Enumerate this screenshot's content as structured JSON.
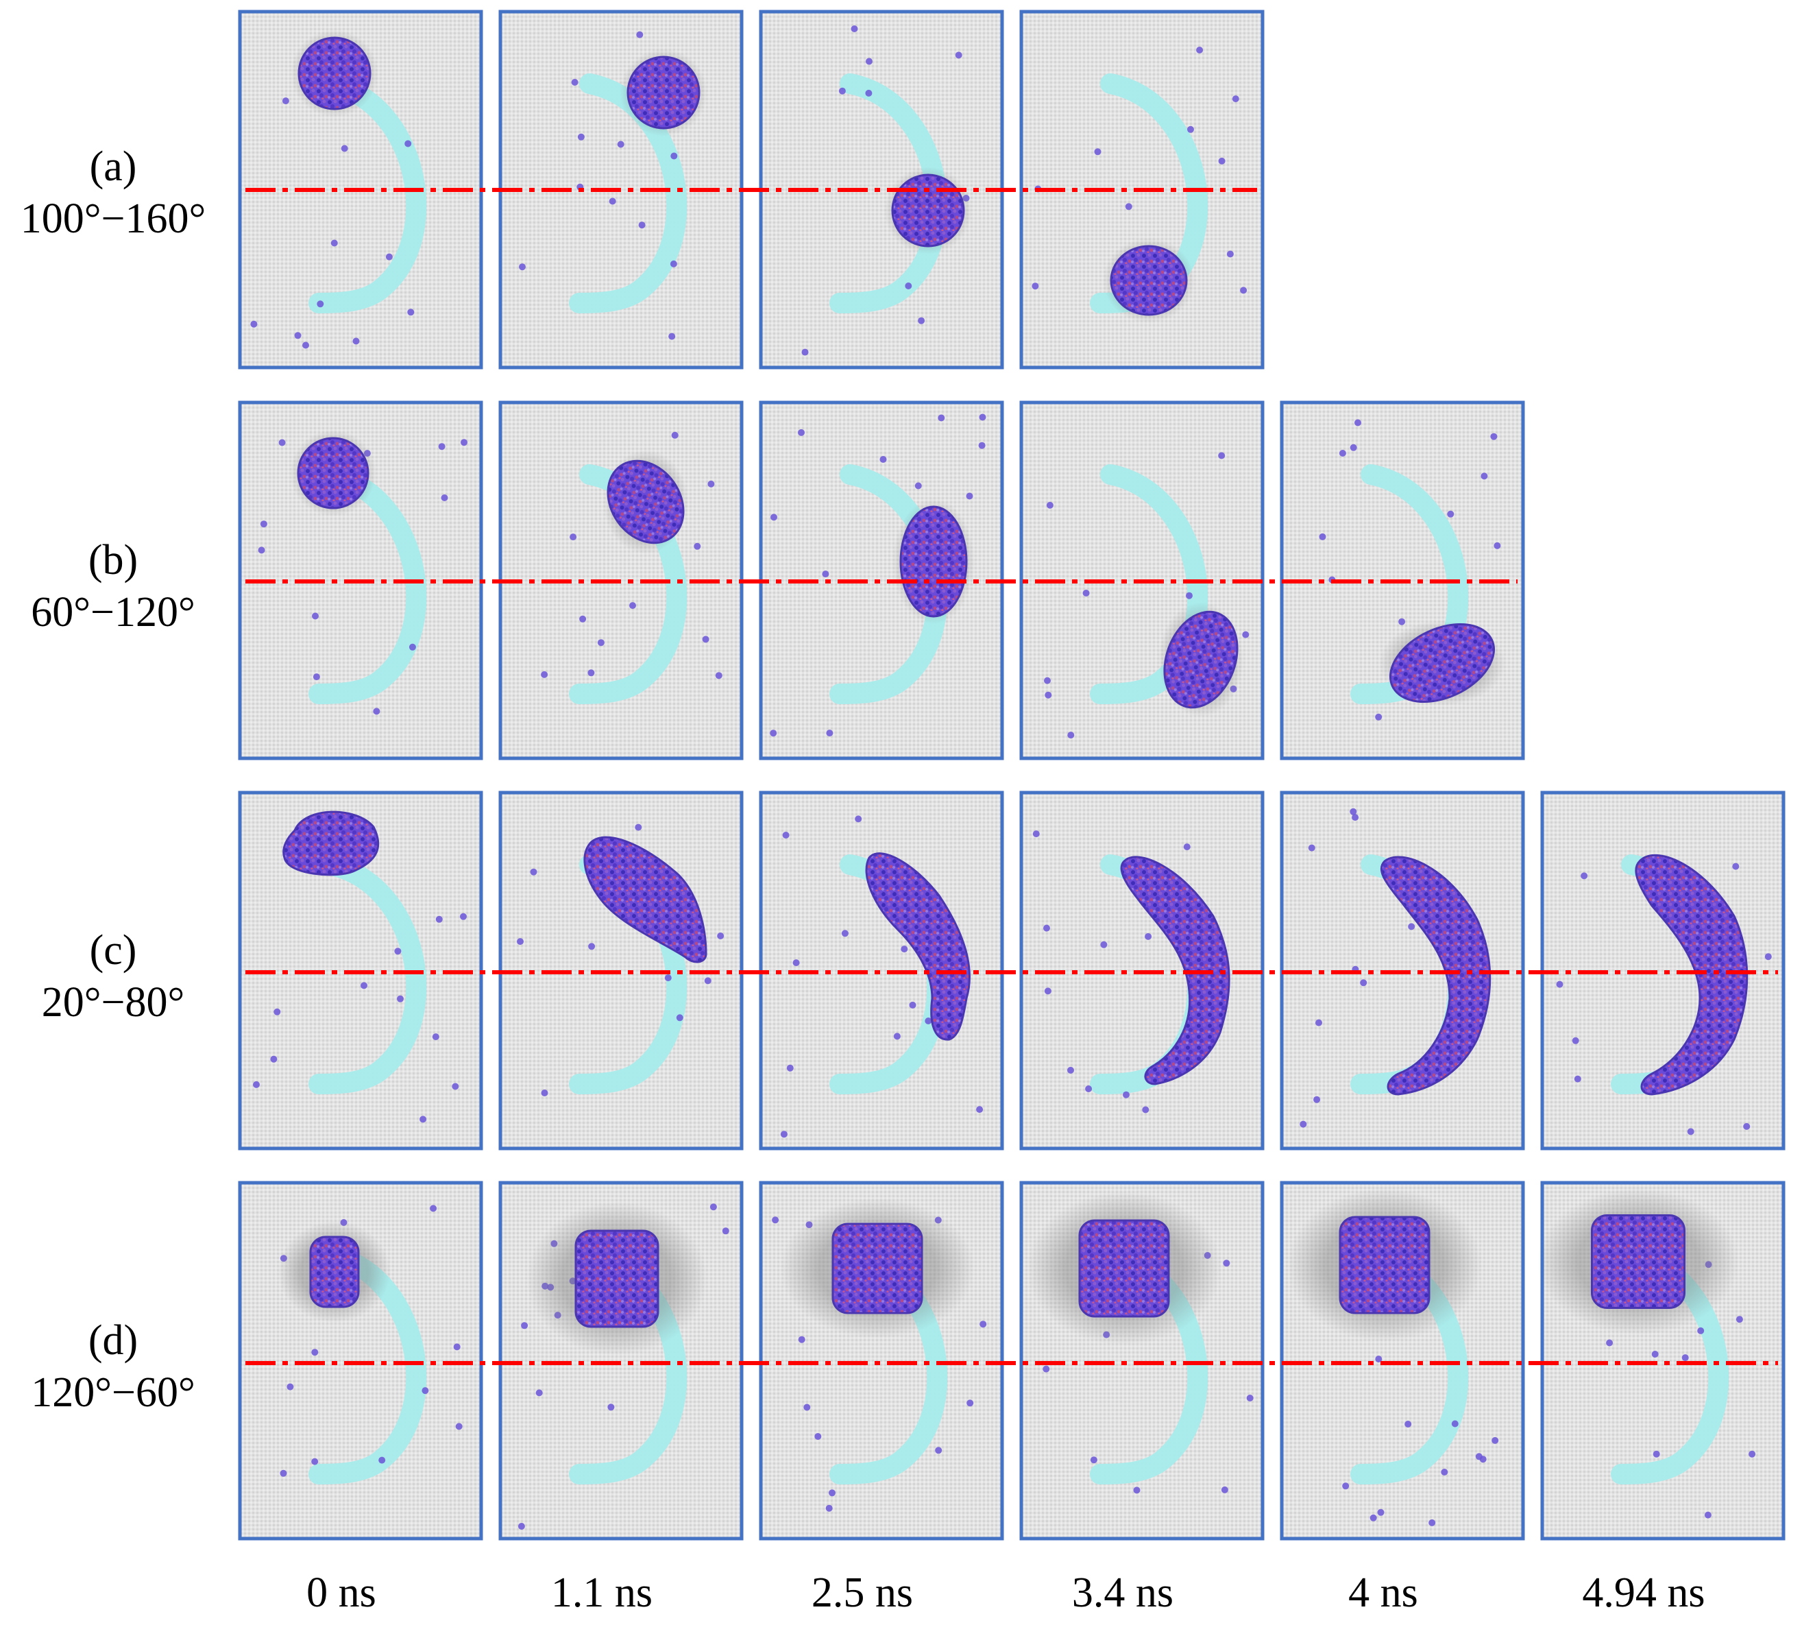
{
  "figure": {
    "rows": [
      {
        "id": "a",
        "tag": "(a)",
        "range": "100°−160°",
        "frames": 4,
        "shape": "sphere"
      },
      {
        "id": "b",
        "tag": "(b)",
        "range": "60°−120°",
        "frames": 5,
        "shape": "ellipse"
      },
      {
        "id": "c",
        "tag": "(c)",
        "range": "20°−80°",
        "frames": 6,
        "shape": "spreading"
      },
      {
        "id": "d",
        "tag": "(d)",
        "range": "120°−60°",
        "frames": 6,
        "shape": "block"
      }
    ],
    "time_labels": [
      "0 ns",
      "1.1 ns",
      "2.5 ns",
      "3.4 ns",
      "4 ns",
      "4.94 ns"
    ],
    "colors": {
      "frame_border": "#4472c4",
      "panel_background": "#e2e2e2",
      "track": "#a6ecec",
      "droplet": "#6a4ad8",
      "reference_line": "#ff0000",
      "text": "#000000"
    }
  }
}
